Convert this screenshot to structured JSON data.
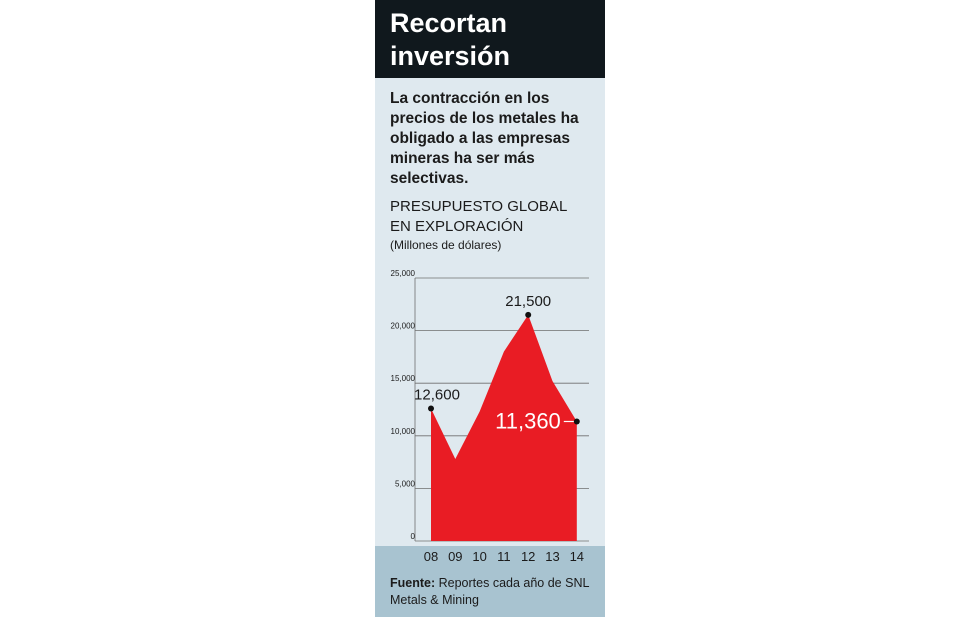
{
  "card": {
    "headline": "Recortan inversión",
    "intro": "La contracción en los precios de los metales ha obligado a las empresas mineras ha ser más selectivas.",
    "chart_title": "PRESUPUESTO GLOBAL EN EXPLORACIÓN",
    "chart_unit": "(Millones de dólares)",
    "source_label": "Fuente:",
    "source_text": "Reportes cada año de SNL Metals & Mining"
  },
  "colors": {
    "header_bg": "#10181d",
    "card_bg": "#dfe9ef",
    "footer_bg": "#a8c3d0",
    "area_fill": "#e91c24",
    "text": "#1b1b1b"
  },
  "chart_data": {
    "type": "area",
    "title": "PRESUPUESTO GLOBAL EN EXPLORACIÓN",
    "ylabel": "(Millones de dólares)",
    "xlabel": "",
    "categories": [
      "08",
      "09",
      "10",
      "11",
      "12",
      "13",
      "14"
    ],
    "values": [
      12600,
      7800,
      12300,
      18000,
      21500,
      15200,
      11360
    ],
    "ylim": [
      0,
      25000
    ],
    "yticks": [
      0,
      5000,
      10000,
      15000,
      20000,
      25000
    ],
    "ytick_labels": [
      "0",
      "5,000",
      "10,000",
      "15,000",
      "20,000",
      "25,000"
    ],
    "grid": true,
    "annotations": [
      {
        "index": 0,
        "label": "12,600"
      },
      {
        "index": 4,
        "label": "21,500"
      },
      {
        "index": 6,
        "label": "11,360"
      }
    ]
  }
}
